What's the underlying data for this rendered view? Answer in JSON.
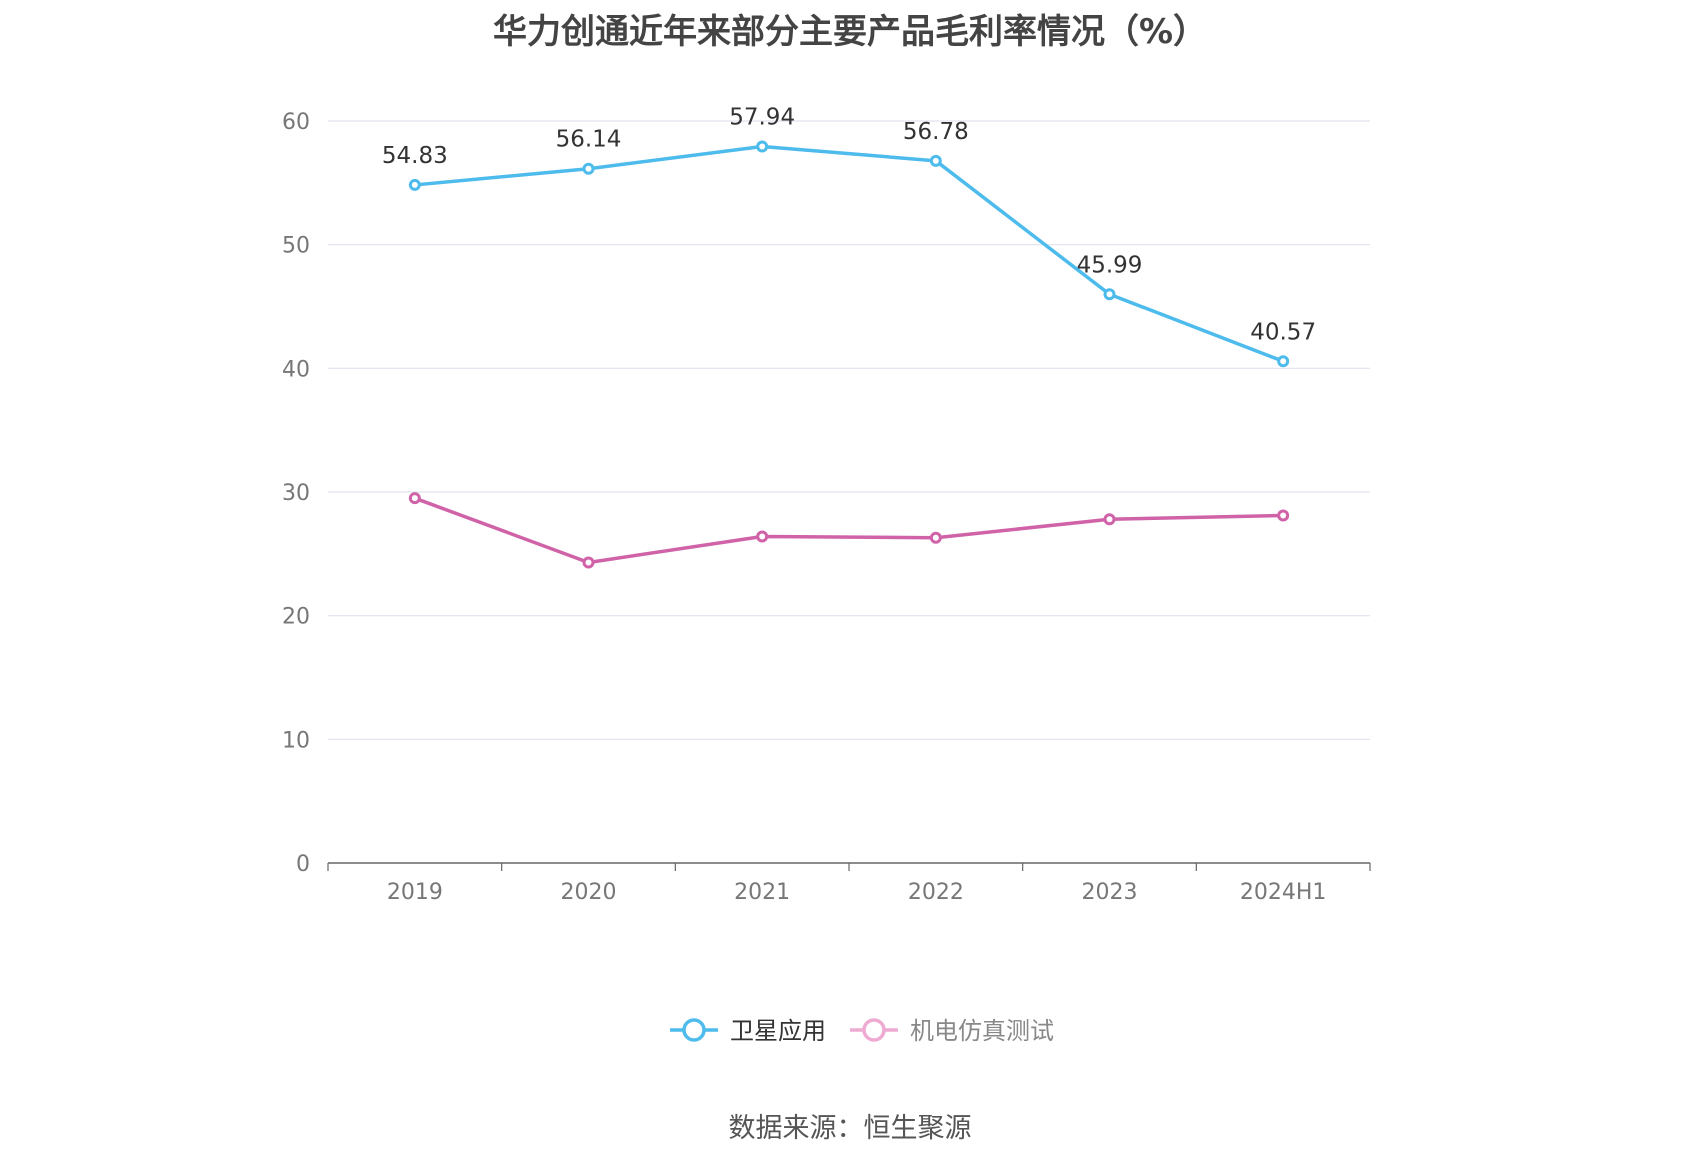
{
  "chart_data": {
    "type": "line",
    "title": "华力创通近年来部分主要产品毛利率情况（%）",
    "categories": [
      "2019",
      "2020",
      "2021",
      "2022",
      "2023",
      "2024H1"
    ],
    "ylim": [
      0,
      60
    ],
    "yticks": [
      0,
      10,
      20,
      30,
      40,
      50,
      60
    ],
    "grid": true,
    "legend_position": "bottom",
    "series": [
      {
        "name": "卫星应用",
        "values": [
          54.83,
          56.14,
          57.94,
          56.78,
          45.99,
          40.57
        ],
        "data_labels": [
          "54.83",
          "56.14",
          "57.94",
          "56.78",
          "45.99",
          "40.57"
        ],
        "color": "#4dbbec"
      },
      {
        "name": "机电仿真测试",
        "values": [
          29.5,
          24.3,
          26.4,
          26.3,
          27.8,
          28.1
        ],
        "color": "#d062a8",
        "legend_color": "#eeaad2"
      }
    ]
  },
  "source_text": "数据来源：恒生聚源"
}
